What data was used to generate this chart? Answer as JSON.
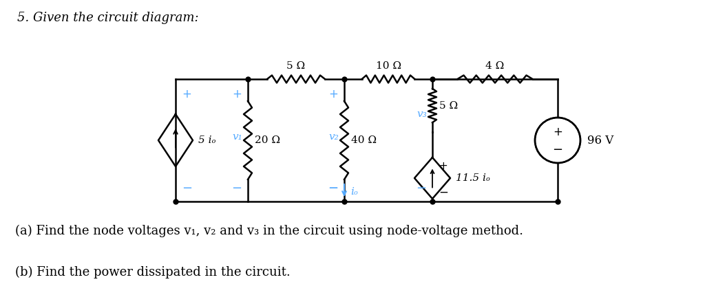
{
  "title_text": "5. Given the circuit diagram:",
  "question_a": "(a) Find the node voltages v₁, v₂ and v₃ in the circuit using node-voltage method.",
  "question_b": "(b) Find the power dissipated in the circuit.",
  "background_color": "#ffffff",
  "text_color": "#000000",
  "circuit_color": "#000000",
  "label_color": "#55aaff",
  "resistor_5_top": "5 Ω",
  "resistor_10_top": "10 Ω",
  "resistor_4_top": "4 Ω",
  "resistor_20": "20 Ω",
  "resistor_40": "40 Ω",
  "resistor_5_mid": "5 Ω",
  "source_left": "5 iₒ",
  "node_v1": "v₁",
  "node_v2": "v₂",
  "node_v3": "v₃",
  "current_label": "iₒ",
  "dep_source": "11.5 iₒ",
  "voltage_source": "96 V",
  "font_size_labels": 11,
  "font_size_title": 13,
  "font_size_questions": 13
}
